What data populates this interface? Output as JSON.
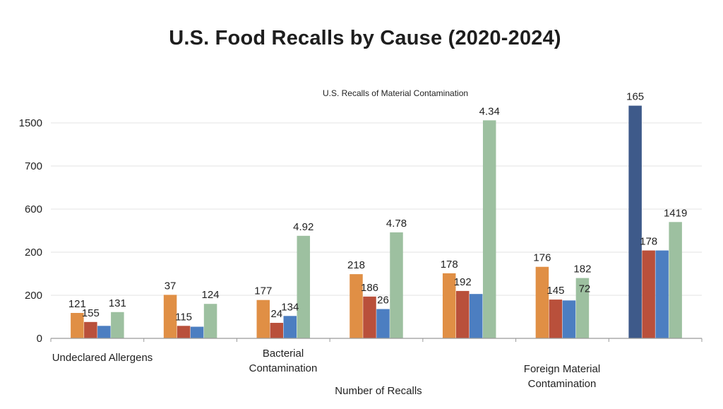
{
  "chart_data": {
    "type": "bar",
    "title": "U.S. Food Recalls by Cause (2020-2024)",
    "annotation": "U.S. Recalls of Material Contamination",
    "xlabel": "Number of Recalls",
    "ylabel": "",
    "y_tick_labels": [
      "0",
      "200",
      "200",
      "600",
      "700",
      "1500"
    ],
    "category_labels": [
      {
        "group": 0,
        "lines": [
          "Undeclared Allergens"
        ]
      },
      {
        "group": 2,
        "lines": [
          "Bacterial",
          "Contamination"
        ]
      },
      {
        "group": 5,
        "lines": [
          "Foreign Material",
          "Contamination"
        ]
      }
    ],
    "series_colors": [
      "#E08F45",
      "#B9503B",
      "#4C7EC1",
      "#9DC0A0"
    ],
    "highlight_color": "#3E5A8A",
    "groups": [
      {
        "bars": [
          {
            "series": 0,
            "height": 0.59,
            "label": "121"
          },
          {
            "series": 1,
            "height": 0.38,
            "label": "155"
          },
          {
            "series": 2,
            "height": 0.29
          },
          {
            "series": 3,
            "height": 0.61,
            "label": "131"
          }
        ]
      },
      {
        "bars": [
          {
            "series": 0,
            "height": 1.01,
            "label": "37"
          },
          {
            "series": 1,
            "height": 0.29,
            "label": "115"
          },
          {
            "series": 2,
            "height": 0.27
          },
          {
            "series": 3,
            "height": 0.8,
            "label": "124"
          }
        ]
      },
      {
        "bars": [
          {
            "series": 0,
            "height": 0.89,
            "label": "177"
          },
          {
            "series": 1,
            "height": 0.36,
            "label": "24"
          },
          {
            "series": 2,
            "height": 0.52,
            "label": "134"
          },
          {
            "series": 3,
            "height": 2.38,
            "label": "4.92"
          }
        ]
      },
      {
        "bars": [
          {
            "series": 0,
            "height": 1.49,
            "label": "218"
          },
          {
            "series": 1,
            "height": 0.97,
            "label": "186"
          },
          {
            "series": 2,
            "height": 0.68,
            "label": "26"
          },
          {
            "series": 3,
            "height": 2.46,
            "label": "4.78"
          }
        ]
      },
      {
        "bars": [
          {
            "series": 0,
            "height": 1.51,
            "label": "178"
          },
          {
            "series": 1,
            "height": 1.1,
            "label": "192"
          },
          {
            "series": 2,
            "height": 1.03
          },
          {
            "series": 3,
            "height": 5.06,
            "label": "4.34"
          }
        ]
      },
      {
        "bars": [
          {
            "series": 0,
            "height": 1.66,
            "label": "176"
          },
          {
            "series": 1,
            "height": 0.9,
            "label": "145"
          },
          {
            "series": 2,
            "height": 0.88
          },
          {
            "series": 3,
            "height": 1.4,
            "label": "182"
          },
          {
            "series": 3,
            "height": 0,
            "label": "72",
            "label_only": true
          }
        ]
      },
      {
        "bars": [
          {
            "series": "highlight",
            "height": 5.4,
            "label": "165"
          },
          {
            "series": 1,
            "height": 2.04,
            "label": "178"
          },
          {
            "series": 2,
            "height": 2.04
          },
          {
            "series": 3,
            "height": 2.7,
            "label": "1419"
          }
        ]
      }
    ]
  }
}
